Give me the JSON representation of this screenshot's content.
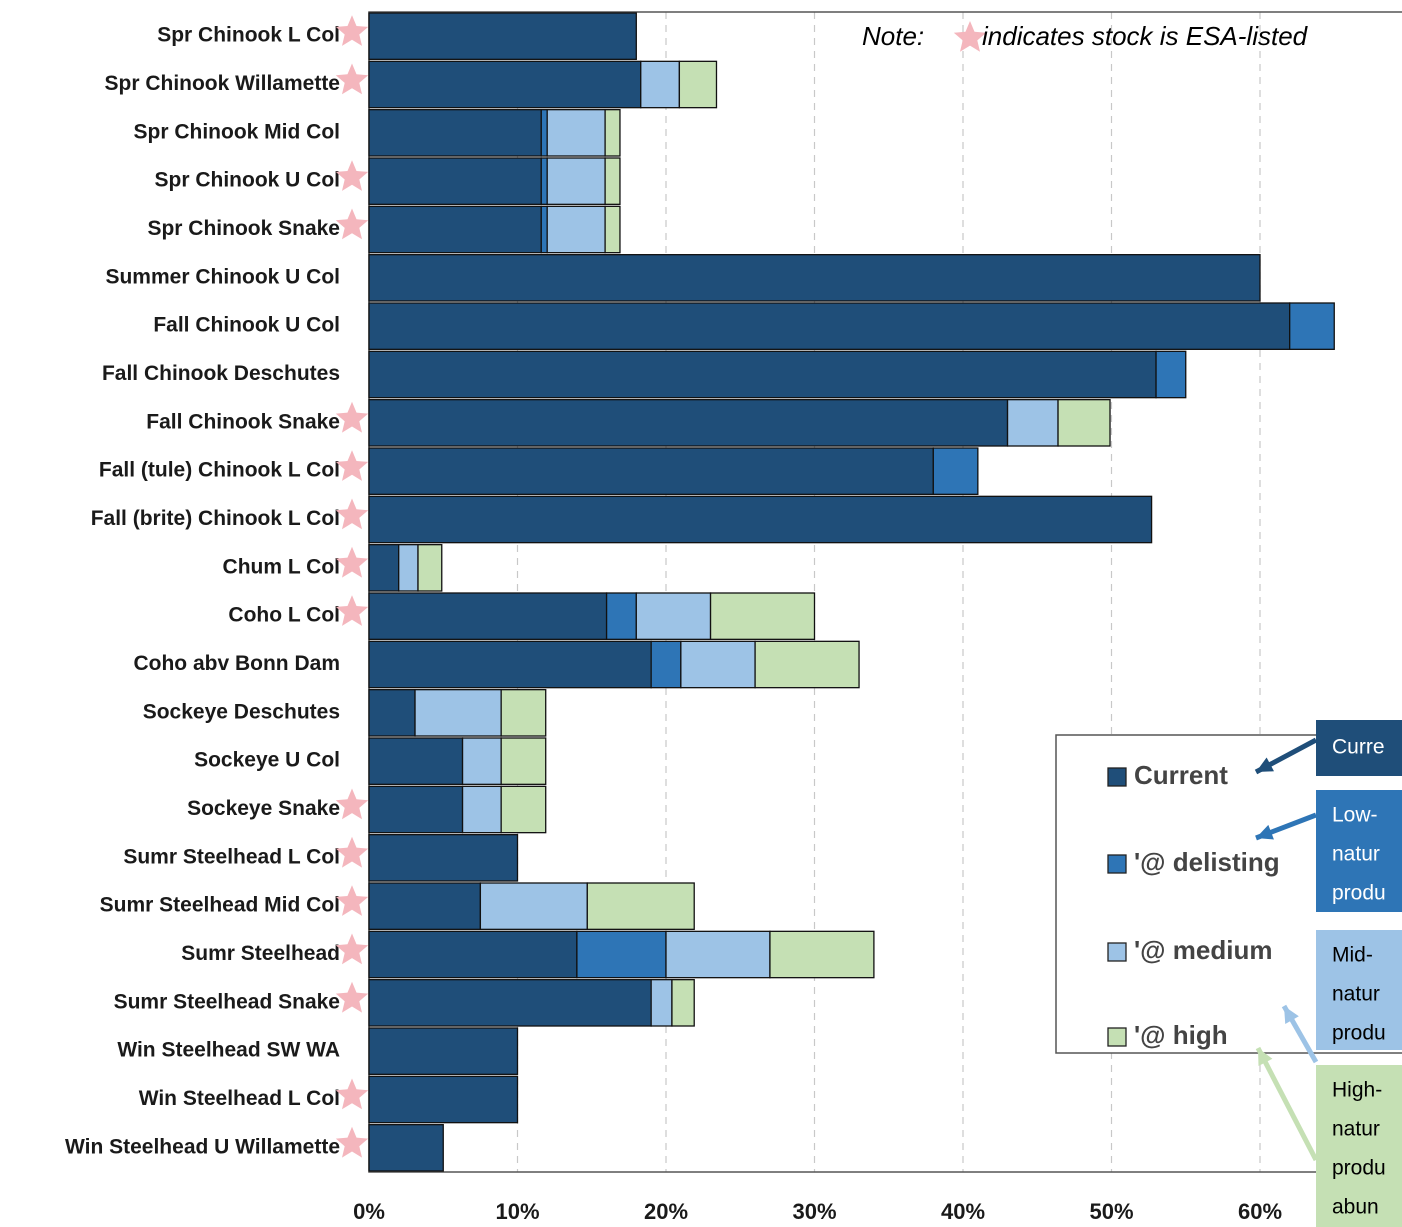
{
  "chart_data": {
    "type": "stacked_barh",
    "note_prefix": "Note:",
    "note": "indicates stock is ESA-listed",
    "categories": [
      "Spr Chinook L Col",
      "Spr Chinook Willamette",
      "Spr Chinook Mid Col",
      "Spr Chinook U Col",
      "Spr Chinook Snake",
      "Summer Chinook U Col",
      "Fall Chinook U Col",
      "Fall Chinook Deschutes",
      "Fall Chinook Snake",
      "Fall (tule) Chinook L Col",
      "Fall (brite) Chinook L Col",
      "Chum L Col",
      "Coho L Col",
      "Coho abv Bonn Dam",
      "Sockeye Deschutes",
      "Sockeye U Col",
      "Sockeye Snake",
      "Sumr Steelhead L Col",
      "Sumr Steelhead Mid Col",
      "Sumr Steelhead",
      "Sumr Steelhead Snake",
      "Win Steelhead SW WA",
      "Win Steelhead L Col",
      "Win Steelhead U Willamette"
    ],
    "esa_listed": [
      true,
      true,
      false,
      true,
      true,
      false,
      false,
      false,
      true,
      true,
      true,
      true,
      true,
      false,
      false,
      false,
      true,
      true,
      true,
      true,
      true,
      false,
      true,
      true
    ],
    "esa_color": "#f4b6bd",
    "series": [
      {
        "name": "Current",
        "color": "#1f4e79",
        "values": [
          18,
          18.3,
          11.6,
          11.6,
          11.6,
          60,
          62,
          53,
          43,
          38,
          52.7,
          2,
          16,
          19,
          3.1,
          6.3,
          6.3,
          10,
          7.5,
          14,
          19,
          10,
          10,
          5
        ]
      },
      {
        "name": "'@ delisting",
        "color": "#2e75b6",
        "values": [
          0,
          0,
          0.4,
          0.4,
          0.4,
          0,
          3,
          2,
          0,
          3,
          0,
          0,
          2,
          2,
          0,
          0,
          0,
          0,
          0,
          6,
          0,
          0,
          0,
          0
        ]
      },
      {
        "name": "'@ medium",
        "color": "#9dc3e6",
        "values": [
          0,
          2.6,
          3.9,
          3.9,
          3.9,
          0,
          0,
          0,
          3.4,
          0,
          0,
          1.3,
          5,
          5,
          5.8,
          2.6,
          2.6,
          0,
          7.2,
          7,
          1.4,
          0,
          0,
          0
        ]
      },
      {
        "name": "'@ high",
        "color": "#c5e0b4",
        "values": [
          0,
          2.5,
          1,
          1,
          1,
          0,
          0,
          0,
          3.5,
          0,
          0,
          1.6,
          7,
          7,
          3,
          3,
          3,
          0,
          7.2,
          7,
          1.5,
          0,
          0,
          0
        ]
      }
    ],
    "callouts": [
      {
        "lines": [
          "Curre"
        ],
        "color": "#1f4e79",
        "text_color": "#ffffff"
      },
      {
        "lines": [
          "Low-",
          "natur",
          "produ"
        ],
        "color": "#2e75b6",
        "text_color": "#ffffff"
      },
      {
        "lines": [
          "Mid-",
          "natur",
          "produ"
        ],
        "color": "#9dc3e6",
        "text_color": "#000000"
      },
      {
        "lines": [
          "High-",
          "natur",
          "produ",
          "abun"
        ],
        "color": "#c5e0b4",
        "text_color": "#000000"
      }
    ],
    "xlim": [
      0,
      69
    ],
    "xticks": [
      {
        "value": 0,
        "label": "0%"
      },
      {
        "value": 10,
        "label": "10%"
      },
      {
        "value": 20,
        "label": "20%"
      },
      {
        "value": 30,
        "label": "30%"
      },
      {
        "value": 40,
        "label": "40%"
      },
      {
        "value": 50,
        "label": "50%"
      },
      {
        "value": 60,
        "label": "60%"
      }
    ],
    "grid": true
  }
}
